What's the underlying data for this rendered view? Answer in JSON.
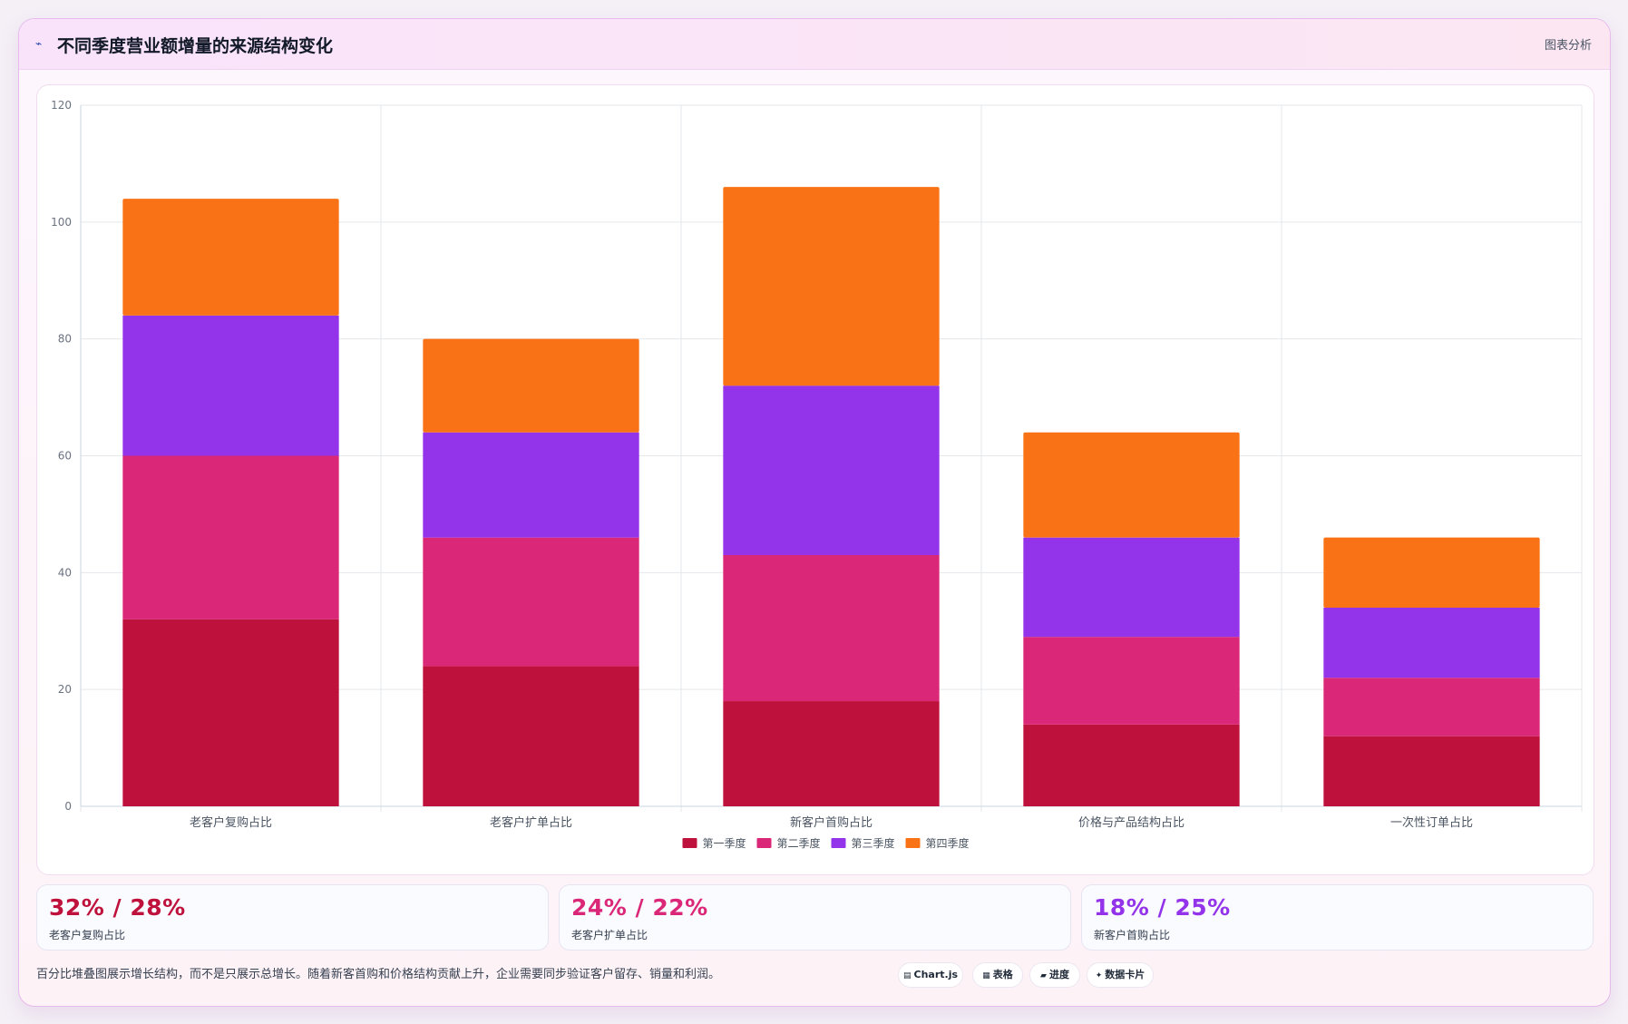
{
  "header": {
    "icon": "chart-trend-icon",
    "title": "不同季度营业额增量的来源结构变化",
    "badge": "图表分析"
  },
  "chart_data": {
    "type": "bar",
    "stacked": true,
    "categories": [
      "老客户复购占比",
      "老客户扩单占比",
      "新客户首购占比",
      "价格与产品结构占比",
      "一次性订单占比"
    ],
    "series": [
      {
        "name": "第一季度",
        "color": "#be123c",
        "values": [
          32,
          24,
          18,
          14,
          12
        ]
      },
      {
        "name": "第二季度",
        "color": "#db2777",
        "values": [
          28,
          22,
          25,
          15,
          10
        ]
      },
      {
        "name": "第三季度",
        "color": "#9333ea",
        "values": [
          24,
          18,
          29,
          17,
          12
        ]
      },
      {
        "name": "第四季度",
        "color": "#f97316",
        "values": [
          20,
          16,
          34,
          18,
          12
        ]
      }
    ],
    "ylim": [
      0,
      120
    ],
    "yticks": [
      0,
      20,
      40,
      60,
      80,
      100,
      120
    ],
    "grid": true,
    "legend": "bottom-center"
  },
  "stats": [
    {
      "value": "32% / 28%",
      "label": "老客户复购占比",
      "color": "#be123c"
    },
    {
      "value": "24% / 22%",
      "label": "老客户扩单占比",
      "color": "#db2777"
    },
    {
      "value": "18% / 25%",
      "label": "新客户首购占比",
      "color": "#9333ea"
    }
  ],
  "note": "百分比堆叠图展示增长结构，而不是只展示总增长。随着新客首购和价格结构贡献上升，企业需要同步验证客户留存、销量和利润。",
  "pills": [
    {
      "icon": "chart-icon",
      "glyph": "▤",
      "label": "Chart.js"
    },
    {
      "icon": "table-icon",
      "glyph": "▦",
      "label": "表格"
    },
    {
      "icon": "progress-icon",
      "glyph": "▰",
      "label": "进度"
    },
    {
      "icon": "sparkle-icon",
      "glyph": "✦",
      "label": "数据卡片"
    }
  ]
}
